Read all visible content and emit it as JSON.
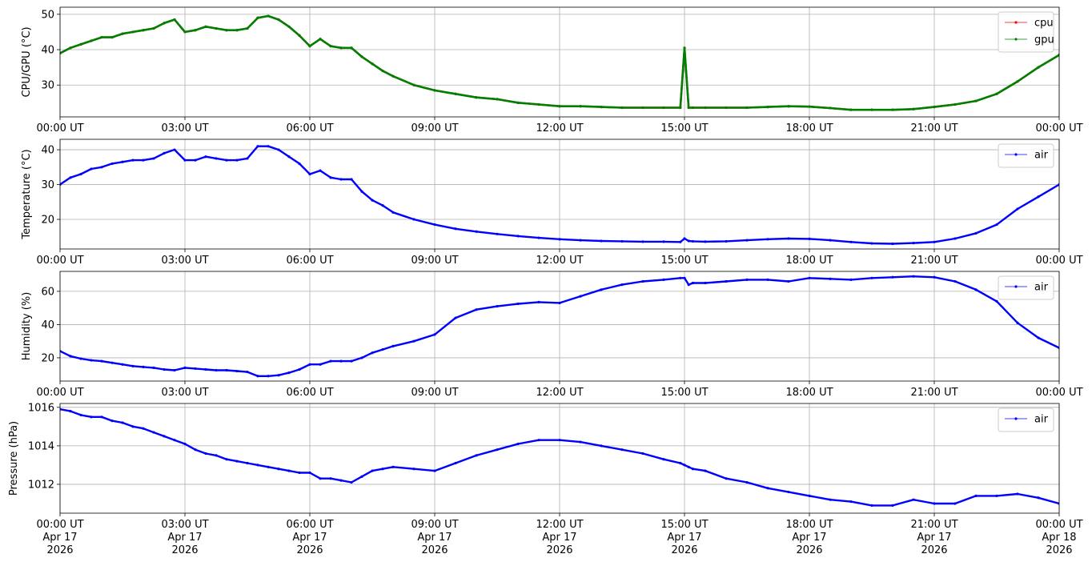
{
  "chart_data": [
    {
      "type": "line",
      "ylabel": "CPU/GPU (°C)",
      "ylim": [
        21,
        52
      ],
      "yticks": [
        30,
        40,
        50
      ],
      "xlim": [
        0,
        24
      ],
      "xtick_labels": [
        "00:00 UT",
        "03:00 UT",
        "06:00 UT",
        "09:00 UT",
        "12:00 UT",
        "15:00 UT",
        "18:00 UT",
        "21:00 UT",
        "00:00 UT"
      ],
      "grid": true,
      "legend_position": "top-right",
      "series": [
        {
          "name": "cpu",
          "color": "#ff0000",
          "x": [
            0.0,
            0.25,
            0.5,
            0.75,
            1.0,
            1.25,
            1.5,
            1.75,
            2.0,
            2.25,
            2.5,
            2.75,
            3.0,
            3.25,
            3.5,
            3.75,
            4.0,
            4.25,
            4.5,
            4.75,
            5.0,
            5.25,
            5.5,
            5.75,
            6.0,
            6.25,
            6.5,
            6.75,
            7.0,
            7.25,
            7.5,
            7.75,
            8.0,
            8.5,
            9.0,
            9.5,
            10.0,
            10.5,
            11.0,
            11.5,
            12.0,
            12.5,
            13.0,
            13.5,
            14.0,
            14.5,
            14.9,
            15.0,
            15.1,
            15.2,
            15.5,
            16.0,
            16.5,
            17.0,
            17.5,
            18.0,
            18.5,
            19.0,
            19.5,
            20.0,
            20.5,
            21.0,
            21.5,
            22.0,
            22.5,
            23.0,
            23.5,
            24.0
          ],
          "y": [
            39,
            40.5,
            41.5,
            42.5,
            43.5,
            43.5,
            44.5,
            45,
            45.5,
            46,
            47.5,
            48.5,
            45,
            45.5,
            46.5,
            46,
            45.5,
            45.5,
            46,
            49,
            49.5,
            48.5,
            46.5,
            44,
            41,
            43,
            41,
            40.5,
            40.5,
            38,
            36,
            34,
            32.5,
            30,
            28.5,
            27.5,
            26.5,
            26,
            25,
            24.5,
            24,
            24,
            23.8,
            23.6,
            23.6,
            23.6,
            23.6,
            40.5,
            23.6,
            23.6,
            23.6,
            23.6,
            23.6,
            23.8,
            24,
            23.9,
            23.5,
            23,
            23,
            23,
            23.2,
            23.8,
            24.5,
            25.5,
            27.5,
            31,
            35,
            38.5
          ]
        },
        {
          "name": "gpu",
          "color": "#008000",
          "x": [
            0.0,
            0.25,
            0.5,
            0.75,
            1.0,
            1.25,
            1.5,
            1.75,
            2.0,
            2.25,
            2.5,
            2.75,
            3.0,
            3.25,
            3.5,
            3.75,
            4.0,
            4.25,
            4.5,
            4.75,
            5.0,
            5.25,
            5.5,
            5.75,
            6.0,
            6.25,
            6.5,
            6.75,
            7.0,
            7.25,
            7.5,
            7.75,
            8.0,
            8.5,
            9.0,
            9.5,
            10.0,
            10.5,
            11.0,
            11.5,
            12.0,
            12.5,
            13.0,
            13.5,
            14.0,
            14.5,
            14.9,
            15.0,
            15.1,
            15.2,
            15.5,
            16.0,
            16.5,
            17.0,
            17.5,
            18.0,
            18.5,
            19.0,
            19.5,
            20.0,
            20.5,
            21.0,
            21.5,
            22.0,
            22.5,
            23.0,
            23.5,
            24.0
          ],
          "y": [
            39,
            40.5,
            41.5,
            42.5,
            43.5,
            43.5,
            44.5,
            45,
            45.5,
            46,
            47.5,
            48.5,
            45,
            45.5,
            46.5,
            46,
            45.5,
            45.5,
            46,
            49,
            49.5,
            48.5,
            46.5,
            44,
            41,
            43,
            41,
            40.5,
            40.5,
            38,
            36,
            34,
            32.5,
            30,
            28.5,
            27.5,
            26.5,
            26,
            25,
            24.5,
            24,
            24,
            23.8,
            23.6,
            23.6,
            23.6,
            23.6,
            40.5,
            23.6,
            23.6,
            23.6,
            23.6,
            23.6,
            23.8,
            24,
            23.9,
            23.5,
            23,
            23,
            23,
            23.2,
            23.8,
            24.5,
            25.5,
            27.5,
            31,
            35,
            38.5
          ]
        }
      ]
    },
    {
      "type": "line",
      "ylabel": "Temperature (°C)",
      "ylim": [
        11.5,
        43
      ],
      "yticks": [
        20,
        30,
        40
      ],
      "xlim": [
        0,
        24
      ],
      "xtick_labels": [
        "00:00 UT",
        "03:00 UT",
        "06:00 UT",
        "09:00 UT",
        "12:00 UT",
        "15:00 UT",
        "18:00 UT",
        "21:00 UT",
        "00:00 UT"
      ],
      "grid": true,
      "legend_position": "top-right",
      "series": [
        {
          "name": "air",
          "color": "#0000ff",
          "x": [
            0.0,
            0.25,
            0.5,
            0.75,
            1.0,
            1.25,
            1.5,
            1.75,
            2.0,
            2.25,
            2.5,
            2.75,
            3.0,
            3.25,
            3.5,
            3.75,
            4.0,
            4.25,
            4.5,
            4.75,
            5.0,
            5.25,
            5.5,
            5.75,
            6.0,
            6.25,
            6.5,
            6.75,
            7.0,
            7.25,
            7.5,
            7.75,
            8.0,
            8.5,
            9.0,
            9.5,
            10.0,
            10.5,
            11.0,
            11.5,
            12.0,
            12.5,
            13.0,
            13.5,
            14.0,
            14.5,
            14.9,
            15.0,
            15.1,
            15.2,
            15.5,
            16.0,
            16.5,
            17.0,
            17.5,
            18.0,
            18.5,
            19.0,
            19.5,
            20.0,
            20.5,
            21.0,
            21.5,
            22.0,
            22.5,
            23.0,
            23.5,
            24.0
          ],
          "y": [
            30,
            32,
            33,
            34.5,
            35,
            36,
            36.5,
            37,
            37,
            37.5,
            39,
            40,
            37,
            37,
            38,
            37.5,
            37,
            37,
            37.5,
            41,
            41,
            40,
            38,
            36,
            33,
            34,
            32,
            31.5,
            31.5,
            28,
            25.5,
            24,
            22,
            20,
            18.5,
            17.3,
            16.5,
            15.8,
            15.2,
            14.7,
            14.3,
            14,
            13.8,
            13.7,
            13.6,
            13.6,
            13.5,
            14.5,
            13.8,
            13.7,
            13.6,
            13.7,
            14,
            14.3,
            14.5,
            14.4,
            14,
            13.5,
            13.1,
            13,
            13.2,
            13.5,
            14.5,
            16,
            18.5,
            23,
            26.5,
            30
          ]
        }
      ]
    },
    {
      "type": "line",
      "ylabel": "Humidity (%)",
      "ylim": [
        6,
        72
      ],
      "yticks": [
        20,
        40,
        60
      ],
      "xlim": [
        0,
        24
      ],
      "xtick_labels": [
        "00:00 UT",
        "03:00 UT",
        "06:00 UT",
        "09:00 UT",
        "12:00 UT",
        "15:00 UT",
        "18:00 UT",
        "21:00 UT",
        "00:00 UT"
      ],
      "grid": true,
      "legend_position": "top-right",
      "series": [
        {
          "name": "air",
          "color": "#0000ff",
          "x": [
            0.0,
            0.25,
            0.5,
            0.75,
            1.0,
            1.25,
            1.5,
            1.75,
            2.0,
            2.25,
            2.5,
            2.75,
            3.0,
            3.25,
            3.5,
            3.75,
            4.0,
            4.25,
            4.5,
            4.75,
            5.0,
            5.25,
            5.5,
            5.75,
            6.0,
            6.25,
            6.5,
            6.75,
            7.0,
            7.25,
            7.5,
            7.75,
            8.0,
            8.5,
            9.0,
            9.5,
            10.0,
            10.5,
            11.0,
            11.5,
            12.0,
            12.5,
            13.0,
            13.5,
            14.0,
            14.5,
            14.9,
            15.0,
            15.1,
            15.2,
            15.5,
            16.0,
            16.5,
            17.0,
            17.5,
            18.0,
            18.5,
            19.0,
            19.5,
            20.0,
            20.5,
            21.0,
            21.5,
            22.0,
            22.5,
            23.0,
            23.5,
            24.0
          ],
          "y": [
            24,
            21,
            19.5,
            18.5,
            18,
            17,
            16,
            15,
            14.5,
            14,
            13,
            12.5,
            14,
            13.5,
            13,
            12.5,
            12.5,
            12,
            11.5,
            9,
            9,
            9.5,
            11,
            13,
            16,
            16,
            18,
            18,
            18,
            20,
            23,
            25,
            27,
            30,
            34,
            44,
            49,
            51,
            52.5,
            53.5,
            53,
            57,
            61,
            64,
            66,
            67,
            68,
            68,
            64,
            65,
            65,
            66,
            67,
            67,
            66,
            68,
            67.5,
            67,
            68,
            68.5,
            69,
            68.5,
            66,
            61,
            54,
            41,
            32,
            26
          ]
        }
      ]
    },
    {
      "type": "line",
      "ylabel": "Pressure (hPa)",
      "ylim": [
        1010.5,
        1016.2
      ],
      "yticks": [
        1012,
        1014,
        1016
      ],
      "xlim": [
        0,
        24
      ],
      "xtick_labels": [
        "00:00 UT\nApr 17\n2026",
        "03:00 UT\nApr 17\n2026",
        "06:00 UT\nApr 17\n2026",
        "09:00 UT\nApr 17\n2026",
        "12:00 UT\nApr 17\n2026",
        "15:00 UT\nApr 17\n2026",
        "18:00 UT\nApr 17\n2026",
        "21:00 UT\nApr 17\n2026",
        "00:00 UT\nApr 18\n2026"
      ],
      "grid": true,
      "legend_position": "top-right",
      "series": [
        {
          "name": "air",
          "color": "#0000ff",
          "x": [
            0.0,
            0.25,
            0.5,
            0.75,
            1.0,
            1.25,
            1.5,
            1.75,
            2.0,
            2.25,
            2.5,
            2.75,
            3.0,
            3.25,
            3.5,
            3.75,
            4.0,
            4.25,
            4.5,
            4.75,
            5.0,
            5.25,
            5.5,
            5.75,
            6.0,
            6.25,
            6.5,
            6.75,
            7.0,
            7.25,
            7.5,
            7.75,
            8.0,
            8.5,
            9.0,
            9.5,
            10.0,
            10.5,
            11.0,
            11.5,
            12.0,
            12.5,
            13.0,
            13.5,
            14.0,
            14.5,
            14.9,
            15.0,
            15.1,
            15.2,
            15.5,
            16.0,
            16.5,
            17.0,
            17.5,
            18.0,
            18.5,
            19.0,
            19.5,
            20.0,
            20.5,
            21.0,
            21.5,
            22.0,
            22.5,
            23.0,
            23.5,
            24.0
          ],
          "y": [
            1015.9,
            1015.8,
            1015.6,
            1015.5,
            1015.5,
            1015.3,
            1015.2,
            1015.0,
            1014.9,
            1014.7,
            1014.5,
            1014.3,
            1014.1,
            1013.8,
            1013.6,
            1013.5,
            1013.3,
            1013.2,
            1013.1,
            1013.0,
            1012.9,
            1012.8,
            1012.7,
            1012.6,
            1012.6,
            1012.3,
            1012.3,
            1012.2,
            1012.1,
            1012.4,
            1012.7,
            1012.8,
            1012.9,
            1012.8,
            1012.7,
            1013.1,
            1013.5,
            1013.8,
            1014.1,
            1014.3,
            1014.3,
            1014.2,
            1014.0,
            1013.8,
            1013.6,
            1013.3,
            1013.1,
            1013.0,
            1012.9,
            1012.8,
            1012.7,
            1012.3,
            1012.1,
            1011.8,
            1011.6,
            1011.4,
            1011.2,
            1011.1,
            1010.9,
            1010.9,
            1011.2,
            1011.0,
            1011.0,
            1011.4,
            1011.4,
            1011.5,
            1011.3,
            1011.0
          ]
        }
      ]
    }
  ]
}
